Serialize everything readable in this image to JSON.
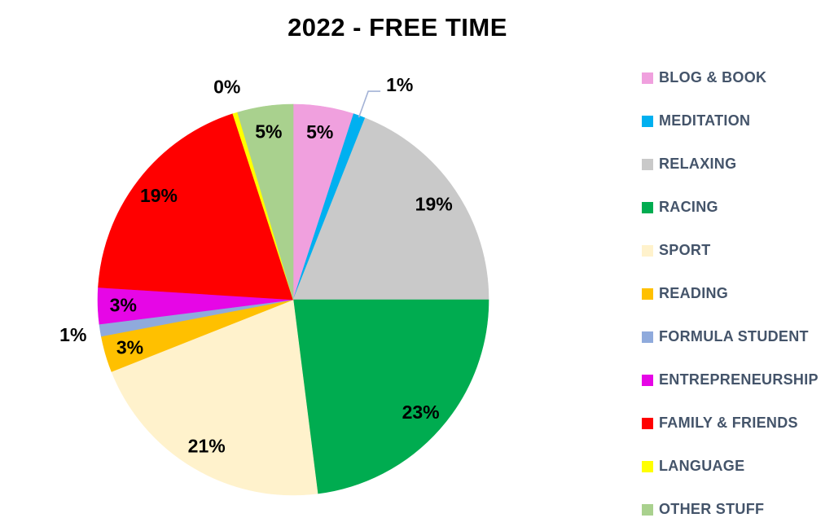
{
  "chart_data": {
    "type": "pie",
    "title": "2022 - FREE TIME",
    "legend_position": "right",
    "start_angle_deg": 0,
    "direction": "clockwise",
    "categories": [
      "BLOG & BOOK",
      "MEDITATION",
      "RELAXING",
      "RACING",
      "SPORT",
      "READING",
      "FORMULA STUDENT",
      "ENTREPRENEURSHIP",
      "FAMILY & FRIENDS",
      "LANGUAGE",
      "OTHER STUFF"
    ],
    "values": [
      5,
      1,
      19,
      23,
      21,
      3,
      1,
      3,
      19,
      0,
      5
    ],
    "data_labels": [
      "5%",
      "1%",
      "19%",
      "23%",
      "21%",
      "3%",
      "1%",
      "3%",
      "19%",
      "0%",
      "5%"
    ],
    "draw_values": [
      5,
      1,
      19,
      23,
      21,
      3,
      1,
      3,
      19,
      0.4,
      4.6
    ],
    "colors": [
      "#F0A0DE",
      "#00B0F0",
      "#C9C9C9",
      "#00AC50",
      "#FFF2CC",
      "#FFC000",
      "#8FAADC",
      "#E606E6",
      "#FF0000",
      "#FFFF00",
      "#A9D18E"
    ],
    "label_placements": [
      "inside",
      "outside-leader",
      "inside",
      "inside",
      "inside",
      "inside",
      "outside",
      "inside",
      "inside",
      "outside",
      "inside"
    ]
  },
  "style": {
    "background": "#FFFFFF",
    "title_color": "#000000",
    "data_label_color": "#000000",
    "legend_text_color": "#44546A",
    "leader_line_color": "#A3B2D6"
  }
}
